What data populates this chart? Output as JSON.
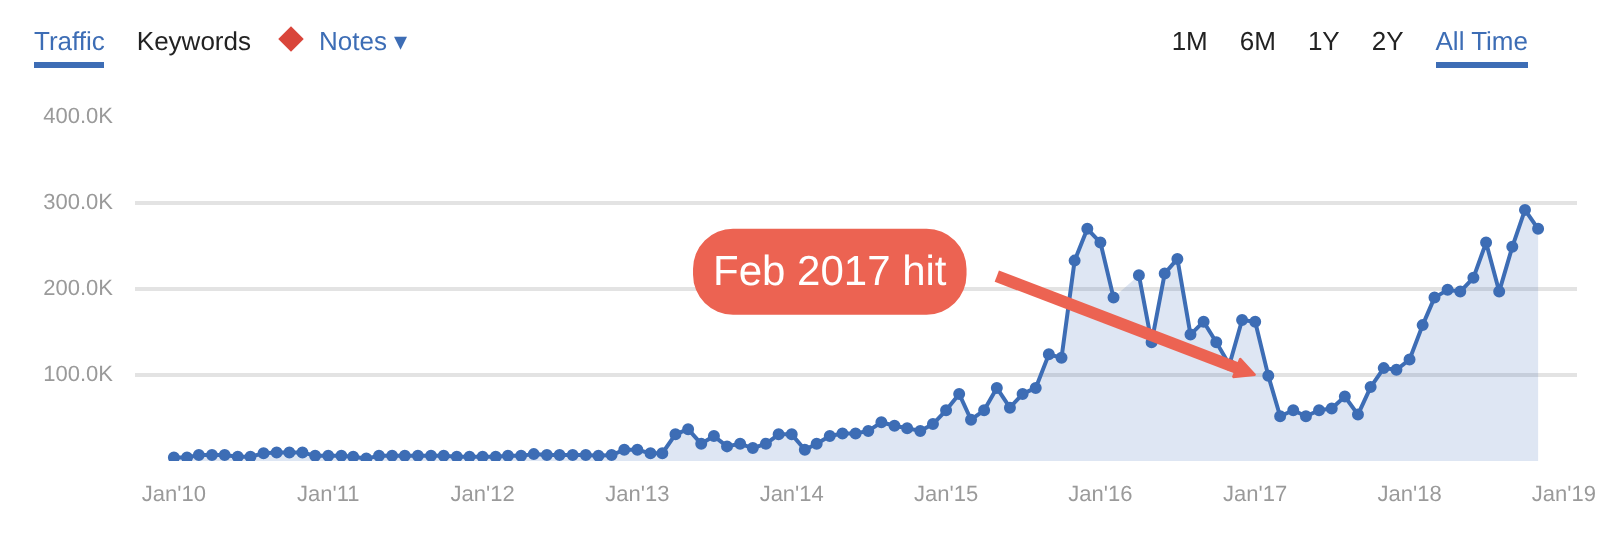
{
  "chart_data": {
    "type": "area",
    "annotations": [
      "Traffic",
      "Keywords",
      "Notes ▾",
      "1M",
      "6M",
      "1Y",
      "2Y",
      "All Time",
      {
        "text": "Feb 2017 hit",
        "x": "2017-01",
        "y": 100
      }
    ],
    "series": [
      {
        "color": "#3d6db5",
        "x": [
          "2010-01",
          "2010-02",
          "2010-03",
          "2010-04",
          "2010-05",
          "2010-06",
          "2010-07",
          "2010-08",
          "2010-09",
          "2010-10",
          "2010-11",
          "2010-12",
          "2011-01",
          "2011-02",
          "2011-03",
          "2011-04",
          "2011-05",
          "2011-06",
          "2011-07",
          "2011-08",
          "2011-09",
          "2011-10",
          "2011-11",
          "2011-12",
          "2012-01",
          "2012-02",
          "2012-03",
          "2012-04",
          "2012-05",
          "2012-06",
          "2012-07",
          "2012-08",
          "2012-09",
          "2012-10",
          "2012-11",
          "2012-12",
          "2013-01",
          "2013-02",
          "2013-03",
          "2013-04",
          "2013-05",
          "2013-06",
          "2013-07",
          "2013-08",
          "2013-09",
          "2013-10",
          "2013-11",
          "2013-12",
          "2014-01",
          "2014-02",
          "2014-03",
          "2014-04",
          "2014-05",
          "2014-06",
          "2014-07",
          "2014-08",
          "2014-09",
          "2014-10",
          "2014-11",
          "2014-12",
          "2015-01",
          "2015-02",
          "2015-03",
          "2015-04",
          "2015-05",
          "2015-06",
          "2015-07",
          "2015-08",
          "2015-09",
          "2015-10",
          "2015-11",
          "2015-12",
          "2016-01",
          "2016-02",
          "2016-03",
          "2016-04",
          "2016-05",
          "2016-06",
          "2016-07",
          "2016-08",
          "2016-09",
          "2016-10",
          "2016-11",
          "2016-12",
          "2017-01",
          "2017-02",
          "2017-03",
          "2017-04",
          "2017-05",
          "2017-06",
          "2017-07",
          "2017-08",
          "2017-09",
          "2017-10",
          "2017-11",
          "2017-12",
          "2018-01",
          "2018-02",
          "2018-03",
          "2018-04",
          "2018-05",
          "2018-06",
          "2018-07",
          "2018-08",
          "2018-09",
          "2018-10",
          "2018-11"
        ],
        "values": [
          4,
          4,
          7,
          7,
          7,
          5,
          5,
          9,
          10,
          10,
          10,
          6,
          6,
          6,
          5,
          3,
          6,
          6,
          6,
          6,
          6,
          6,
          5,
          5,
          5,
          5,
          6,
          6,
          8,
          7,
          7,
          7,
          7,
          6,
          7,
          13,
          13,
          9,
          9,
          31,
          37,
          20,
          29,
          17,
          20,
          15,
          20,
          31,
          31,
          13,
          20,
          29,
          32,
          32,
          35,
          45,
          41,
          38,
          35,
          43,
          59,
          78,
          48,
          59,
          85,
          62,
          78,
          85,
          124,
          120,
          233,
          270,
          254,
          190,
          null,
          216,
          138,
          218,
          235,
          147,
          162,
          138,
          112,
          164,
          162,
          99,
          52,
          59,
          52,
          59,
          61,
          75,
          54,
          86,
          108,
          106,
          118,
          158,
          190,
          199,
          197,
          213,
          254,
          197,
          249,
          292,
          270
        ]
      }
    ],
    "xlim": [
      "2009-10-01",
      "2019-02-01"
    ],
    "xticks": [
      {
        "value": "2010-01",
        "label": "Jan'10"
      },
      {
        "value": "2011-01",
        "label": "Jan'11"
      },
      {
        "value": "2012-01",
        "label": "Jan'12"
      },
      {
        "value": "2013-01",
        "label": "Jan'13"
      },
      {
        "value": "2014-01",
        "label": "Jan'14"
      },
      {
        "value": "2015-01",
        "label": "Jan'15"
      },
      {
        "value": "2016-01",
        "label": "Jan'16"
      },
      {
        "value": "2017-01",
        "label": "Jan'17"
      },
      {
        "value": "2018-01",
        "label": "Jan'18"
      },
      {
        "value": "2019-01",
        "label": "Jan'19"
      }
    ],
    "ylim": [
      0,
      400
    ],
    "yticks": [
      {
        "value": 100,
        "label": "100.0K"
      },
      {
        "value": 200,
        "label": "200.0K"
      },
      {
        "value": 300,
        "label": "300.0K"
      },
      {
        "value": 400,
        "label": "400.0K"
      }
    ],
    "grid": "y",
    "marker": "circle",
    "line_style": "solid"
  }
}
